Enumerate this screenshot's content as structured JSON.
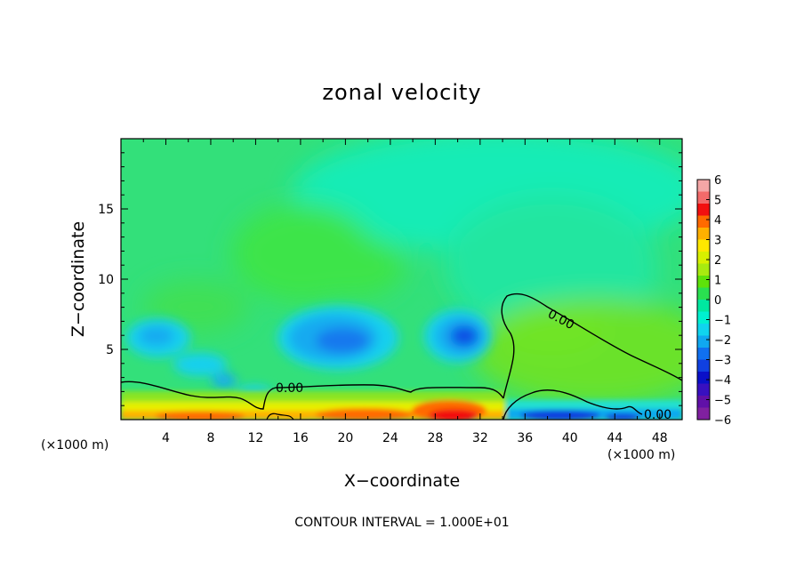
{
  "chart_data": {
    "type": "heatmap",
    "title": "zonal velocity",
    "xlabel": "X−coordinate",
    "ylabel": "Z−coordinate",
    "x_unit_left": "(×1000 m)",
    "x_unit_right": "(×1000 m)",
    "footer": "CONTOUR INTERVAL = 1.000E+01",
    "xlim": [
      0,
      50
    ],
    "ylim": [
      0,
      20
    ],
    "x_ticks": [
      4,
      8,
      12,
      16,
      20,
      24,
      28,
      32,
      36,
      40,
      44,
      48
    ],
    "y_ticks": [
      5,
      10,
      15
    ],
    "colorbar": {
      "ticks": [
        "6",
        "5",
        "4",
        "3",
        "2",
        "1",
        "0",
        "−1",
        "−2",
        "−3",
        "−4",
        "−5",
        "−6"
      ],
      "colors": [
        "#f4a6a6",
        "#f26a6a",
        "#f21010",
        "#ff6a00",
        "#ffb000",
        "#ffe800",
        "#d8f000",
        "#a8ea10",
        "#5ee20a",
        "#2ae050",
        "#00e8a0",
        "#00f0d0",
        "#10d4ee",
        "#10a8f0",
        "#1070f0",
        "#1040e0",
        "#0a10c8",
        "#3810c0",
        "#6010a8",
        "#8020a0"
      ]
    },
    "contour_labels": [
      "0.00",
      "0.00",
      "0.00"
    ],
    "features": [
      {
        "x": 3.5,
        "z": 6.0,
        "value": -3
      },
      {
        "x": 19.0,
        "z": 6.0,
        "value": -3
      },
      {
        "x": 30.5,
        "z": 6.0,
        "value": -4
      },
      {
        "x": 30.0,
        "z": 0.5,
        "value": 4
      },
      {
        "x": 42.0,
        "z": 0.3,
        "value": -4
      }
    ]
  }
}
